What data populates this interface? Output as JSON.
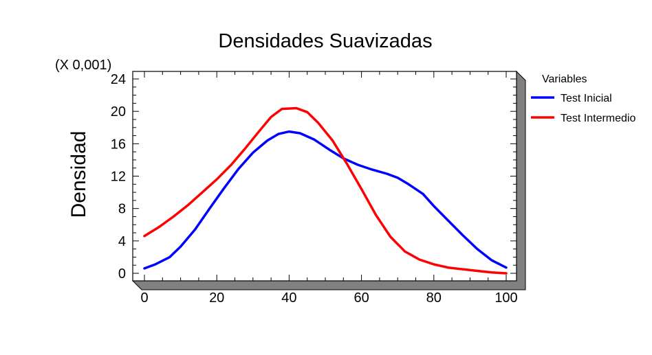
{
  "chart_data": {
    "type": "line",
    "title": "Densidades Suavizadas",
    "ylabel": "Densidad",
    "xlabel": "",
    "y_multiplier_label": "(X 0,001)",
    "xlim": [
      0,
      100
    ],
    "ylim": [
      0,
      24
    ],
    "x_ticks": [
      0,
      20,
      40,
      60,
      80,
      100
    ],
    "y_ticks": [
      0,
      4,
      8,
      12,
      16,
      20,
      24
    ],
    "grid": false,
    "legend_title": "Variables",
    "legend_position": "right",
    "series": [
      {
        "name": "Test Inicial",
        "color": "#0000ff",
        "points": [
          [
            0,
            0.6
          ],
          [
            3,
            1.1
          ],
          [
            7,
            2.0
          ],
          [
            10,
            3.3
          ],
          [
            14,
            5.4
          ],
          [
            18,
            8.0
          ],
          [
            22,
            10.5
          ],
          [
            26,
            12.9
          ],
          [
            30,
            14.9
          ],
          [
            34,
            16.4
          ],
          [
            37,
            17.2
          ],
          [
            40,
            17.5
          ],
          [
            43,
            17.3
          ],
          [
            47,
            16.5
          ],
          [
            51,
            15.3
          ],
          [
            55,
            14.2
          ],
          [
            59,
            13.4
          ],
          [
            63,
            12.8
          ],
          [
            67,
            12.3
          ],
          [
            70,
            11.8
          ],
          [
            73,
            11.0
          ],
          [
            77,
            9.8
          ],
          [
            80,
            8.3
          ],
          [
            84,
            6.5
          ],
          [
            88,
            4.7
          ],
          [
            92,
            3.0
          ],
          [
            96,
            1.6
          ],
          [
            100,
            0.7
          ]
        ]
      },
      {
        "name": "Test Intermedio",
        "color": "#ff0000",
        "points": [
          [
            0,
            4.6
          ],
          [
            4,
            5.7
          ],
          [
            8,
            7.0
          ],
          [
            12,
            8.4
          ],
          [
            16,
            10.0
          ],
          [
            20,
            11.6
          ],
          [
            24,
            13.4
          ],
          [
            28,
            15.5
          ],
          [
            32,
            17.7
          ],
          [
            35,
            19.3
          ],
          [
            38,
            20.3
          ],
          [
            42,
            20.4
          ],
          [
            45,
            19.9
          ],
          [
            48,
            18.6
          ],
          [
            52,
            16.4
          ],
          [
            56,
            13.5
          ],
          [
            60,
            10.4
          ],
          [
            64,
            7.2
          ],
          [
            68,
            4.5
          ],
          [
            72,
            2.7
          ],
          [
            76,
            1.7
          ],
          [
            80,
            1.1
          ],
          [
            84,
            0.7
          ],
          [
            88,
            0.5
          ],
          [
            92,
            0.3
          ],
          [
            96,
            0.1
          ],
          [
            100,
            0.0
          ]
        ]
      }
    ]
  }
}
